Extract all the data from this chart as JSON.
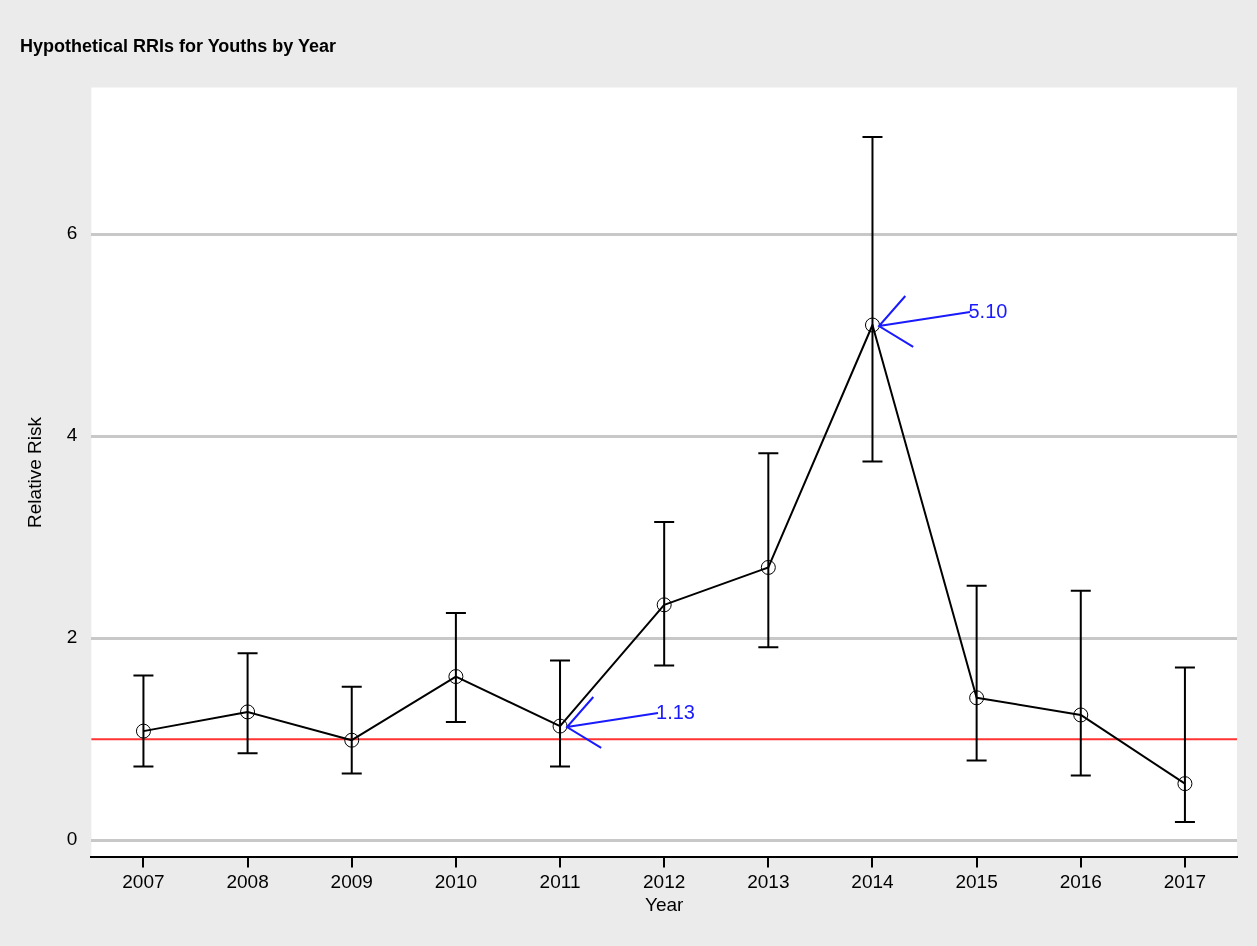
{
  "chart_data": {
    "type": "line",
    "title": "Hypothetical RRIs for Youths by Year",
    "xlabel": "Year",
    "ylabel": "Relative Risk",
    "categories": [
      "2007",
      "2008",
      "2009",
      "2010",
      "2011",
      "2012",
      "2013",
      "2014",
      "2015",
      "2016",
      "2017"
    ],
    "series": [
      {
        "color": "#000000",
        "values": [
          1.08,
          1.27,
          0.99,
          1.62,
          1.13,
          2.33,
          2.7,
          5.1,
          1.41,
          1.24,
          0.56
        ],
        "errors": [
          [
            0.73,
            1.63
          ],
          [
            0.86,
            1.85
          ],
          [
            0.66,
            1.52
          ],
          [
            1.17,
            2.25
          ],
          [
            0.73,
            1.78
          ],
          [
            1.73,
            3.15
          ],
          [
            1.91,
            3.83
          ],
          [
            3.75,
            6.96
          ],
          [
            0.79,
            2.52
          ],
          [
            0.64,
            2.47
          ],
          [
            0.18,
            1.71
          ]
        ]
      }
    ],
    "ylim": [
      -0.17,
      7.45
    ],
    "yticks": [
      0,
      2,
      4,
      6
    ],
    "grid": "y",
    "legend": false,
    "marker": "circle",
    "line_style": "solid",
    "ref_lines": [
      {
        "axis": "y",
        "value": 1,
        "color": "#ff3333"
      }
    ],
    "annotations": [
      {
        "text": "5.10",
        "x": "2014",
        "y": 5.1
      },
      {
        "text": "1.13",
        "x": "2011",
        "y": 1.13
      }
    ]
  }
}
